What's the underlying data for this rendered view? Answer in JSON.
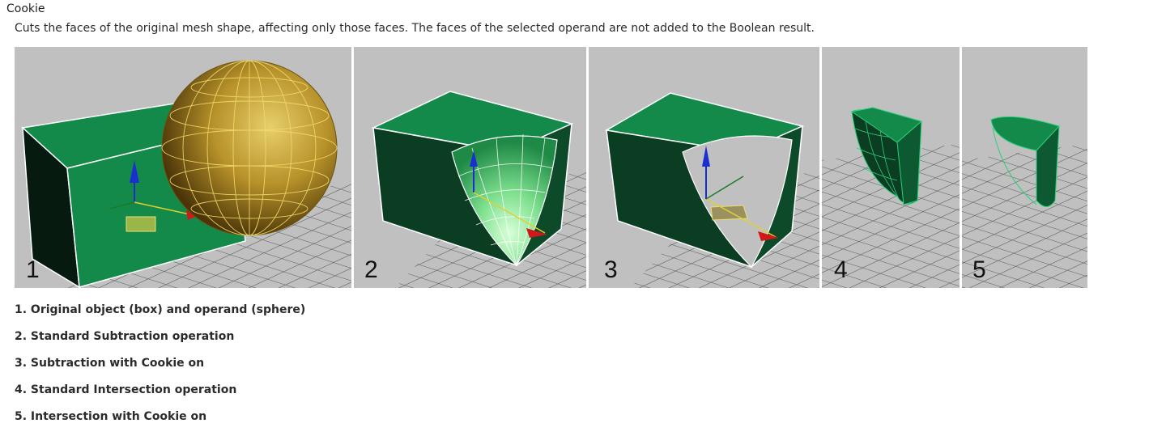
{
  "heading": "Cookie",
  "description": "Cuts the faces of the original mesh shape, affecting only those faces. The faces of the selected operand are not added to the Boolean result.",
  "figure": {
    "panels": [
      {
        "number": "1"
      },
      {
        "number": "2"
      },
      {
        "number": "3"
      },
      {
        "number": "4"
      },
      {
        "number": "5"
      }
    ],
    "colors": {
      "viewport_bg": "#c0c0c0",
      "box_green": "#148a4a",
      "box_dark": "#0a3d22",
      "sphere_gold": "#b8922a",
      "axis_z": "#1b2fd0",
      "axis_x": "#d01818",
      "axis_y": "#1a7a2a"
    },
    "axis_labels": {
      "x": "x",
      "y": "y",
      "z": "z"
    }
  },
  "captions": [
    "1. Original object (box) and operand (sphere)",
    "2. Standard Subtraction operation",
    "3. Subtraction with Cookie on",
    "4. Standard Intersection operation",
    "5. Intersection with Cookie on"
  ]
}
